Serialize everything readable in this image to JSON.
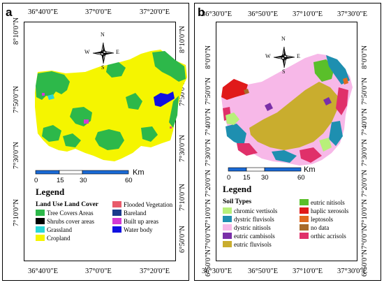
{
  "panel_a": {
    "label": "a",
    "top_lon_ticks": [
      "36°40'0\"E",
      "37°0'0\"E",
      "37°20'0\"E"
    ],
    "bottom_lon_ticks": [
      "36°40'0\"E",
      "37°0'0\"E",
      "37°20'0\"E"
    ],
    "left_lat_ticks": [
      "8°10'0\"N",
      "7°50'0\"N",
      "7°30'0\"N",
      "7°10'0\"N"
    ],
    "right_lat_ticks": [
      "8°10'0\"N",
      "7°50'0\"N",
      "7°30'0\"N",
      "7°10'0\"N",
      "6°50'0\"N"
    ],
    "compass": {
      "n": "N",
      "s": "S",
      "e": "E",
      "w": "W"
    },
    "scale_labels": [
      "0",
      "15",
      "30",
      "60"
    ],
    "scale_unit": "Km",
    "legend_title": "Legend",
    "legend_subtitle": "Land Use Land Cover",
    "legend_items": [
      {
        "label": "Tree Covers Areas",
        "color": "#2db84a"
      },
      {
        "label": "Shrubs cover areas",
        "color": "#000000"
      },
      {
        "label": "Grassland",
        "color": "#2bd6d6"
      },
      {
        "label": "Cropland",
        "color": "#f5f500"
      },
      {
        "label": "Flooded Vegetation",
        "color": "#e85a6a"
      },
      {
        "label": "Bareland",
        "color": "#1a3a8c"
      },
      {
        "label": "Built up areas",
        "color": "#d43ad4"
      },
      {
        "label": "Water body",
        "color": "#1010e0"
      }
    ]
  },
  "panel_b": {
    "label": "b",
    "top_lon_ticks": [
      "36°30'0\"E",
      "36°50'0\"E",
      "37°10'0\"E",
      "37°30'0\"E"
    ],
    "bottom_lon_ticks": [
      "36°30'0\"E",
      "36°50'0\"E",
      "37°10'0\"E",
      "37°30'0\"E"
    ],
    "left_lat_ticks": [
      "8°0'0\"N",
      "7°50'0\"N",
      "7°40'0\"N",
      "7°30'0\"N",
      "7°20'0\"N",
      "7°10'0\"N",
      "7°0'0\"N",
      "6°50'0\"N"
    ],
    "right_lat_ticks": [
      "8°0'0\"N",
      "7°50'0\"N",
      "7°40'0\"N",
      "7°30'0\"N",
      "7°20'0\"N",
      "7°10'0\"N",
      "7°0'0\"N",
      "6°50'0\"N"
    ],
    "compass": {
      "n": "N",
      "s": "S",
      "e": "E",
      "w": "W"
    },
    "scale_labels": [
      "0",
      "15",
      "30",
      "60"
    ],
    "scale_unit": "Km",
    "legend_title": "Legend",
    "legend_subtitle": "Soil Types",
    "legend_items": [
      {
        "label": "chromic vertisols",
        "color": "#b8f07a"
      },
      {
        "label": "dystric fluvisols",
        "color": "#1e8fb0"
      },
      {
        "label": "dystric nitisols",
        "color": "#f7b8e8"
      },
      {
        "label": "eutric cambisols",
        "color": "#7a2fa8"
      },
      {
        "label": "eutric fluvisols",
        "color": "#c9ad2e"
      },
      {
        "label": "eutric nitisols",
        "color": "#5abf2a"
      },
      {
        "label": "haplic xerosols",
        "color": "#e01a1a"
      },
      {
        "label": "leptosols",
        "color": "#e06a20"
      },
      {
        "label": "no data",
        "color": "#a86a2a"
      },
      {
        "label": "orthic acrisols",
        "color": "#e0306a"
      }
    ]
  }
}
